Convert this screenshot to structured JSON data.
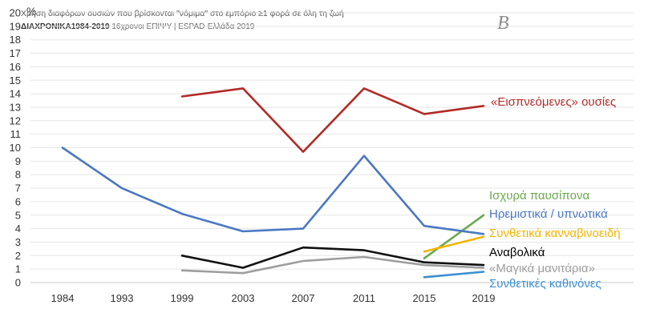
{
  "title": "Χρήση διαφόρων ουσιών που βρίσκονται \"νόμιμα\" στο εμπόριο ≥1 φορά σε όλη τη ζωή",
  "subtitle_bold": "ΔΙΑΧΡΟΝΙΚΑ1984-2019",
  "subtitle_rest": " 16χρονοι ΕΠΙΨΥ | ESPAD-Ελλάδα 2019",
  "panel_letter": "B",
  "chart_data": {
    "type": "line",
    "ylabel": "%",
    "ylim": [
      0,
      20
    ],
    "yticks": [
      0,
      1,
      2,
      3,
      4,
      5,
      6,
      7,
      8,
      9,
      10,
      11,
      12,
      13,
      14,
      15,
      16,
      17,
      18,
      19,
      20
    ],
    "categories": [
      "1984",
      "1993",
      "1999",
      "2003",
      "2007",
      "2011",
      "2015",
      "2019"
    ],
    "grid": true,
    "legend": "inline-right",
    "series": [
      {
        "name": "«Εισπνεόμενες» ουσίες",
        "color": "#b22a26",
        "values": [
          null,
          null,
          13.8,
          14.4,
          9.7,
          14.4,
          12.5,
          13.1
        ]
      },
      {
        "name": "Ισχυρά παυσίπονα",
        "color": "#6aa84f",
        "values": [
          null,
          null,
          null,
          null,
          null,
          null,
          1.8,
          5.0
        ]
      },
      {
        "name": "Ηρεμιστικά / υπνωτικά",
        "color": "#4a78c2",
        "values": [
          10.0,
          7.0,
          5.1,
          3.8,
          4.0,
          9.4,
          4.2,
          3.6
        ]
      },
      {
        "name": "Συνθετικά κανναβινοειδή",
        "color": "#f5b400",
        "values": [
          null,
          null,
          null,
          null,
          null,
          null,
          2.3,
          3.4
        ]
      },
      {
        "name": "Αναβολικά",
        "color": "#111111",
        "values": [
          null,
          null,
          2.0,
          1.1,
          2.6,
          2.4,
          1.5,
          1.3
        ]
      },
      {
        "name": "«Μαγικά μανιτάρια»",
        "color": "#9e9e9e",
        "values": [
          null,
          null,
          0.9,
          0.7,
          1.6,
          1.9,
          1.3,
          1.1
        ]
      },
      {
        "name": "Συνθετικές καθινόνες",
        "color": "#3b8ed0",
        "values": [
          null,
          null,
          null,
          null,
          null,
          null,
          0.4,
          0.8
        ]
      }
    ]
  }
}
